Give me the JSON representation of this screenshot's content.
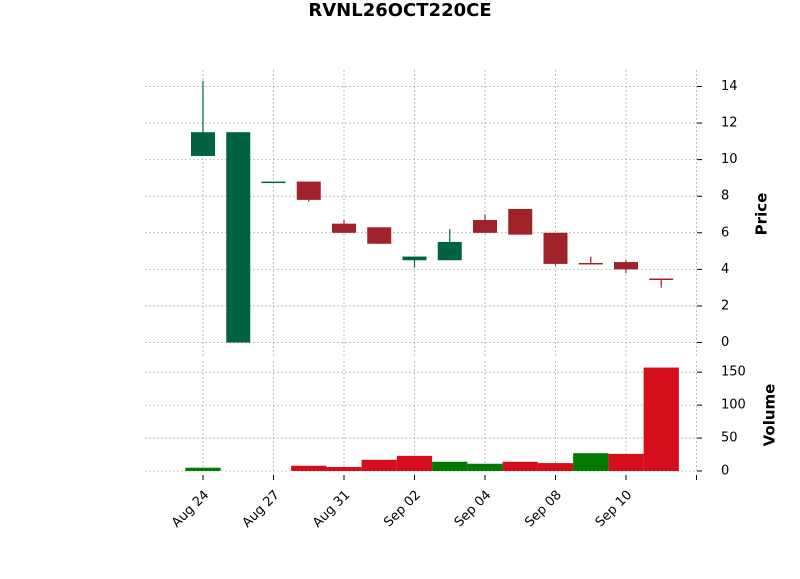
{
  "chart_data": {
    "type": "candlestick",
    "title": "RVNL26OCT220CE",
    "categories": [
      "Aug 24",
      null,
      "Aug 27",
      null,
      "Aug 31",
      null,
      "Sep 02",
      null,
      "Sep 04",
      null,
      "Sep 08",
      null,
      "Sep 10",
      null,
      null
    ],
    "open": [
      10.2,
      0,
      8.8,
      8.8,
      6.5,
      6.3,
      4.5,
      4.5,
      6.7,
      7.3,
      6.0,
      4.35,
      4.4,
      3.5,
      null
    ],
    "high": [
      14.3,
      11.5,
      8.8,
      8.8,
      6.7,
      6.3,
      4.7,
      6.2,
      7.0,
      7.3,
      6.0,
      4.7,
      4.5,
      3.5,
      null
    ],
    "low": [
      10.2,
      0,
      8.8,
      7.7,
      6.0,
      5.4,
      4.1,
      4.5,
      6.0,
      5.9,
      4.2,
      4.3,
      3.8,
      3.0,
      null
    ],
    "close": [
      11.5,
      11.5,
      8.8,
      7.8,
      6.0,
      5.4,
      4.7,
      5.5,
      6.0,
      5.9,
      4.3,
      4.3,
      4.0,
      3.45,
      null
    ],
    "up_color": "#006340",
    "down_color": "#a02128",
    "ylabel": "Price",
    "ylim": [
      -0.9,
      14.9
    ],
    "yticks": [
      0,
      2,
      4,
      6,
      8,
      10,
      12,
      14
    ],
    "volume": [
      5,
      0,
      0,
      8,
      6,
      17,
      23,
      14,
      11,
      14,
      12,
      27,
      26,
      157,
      null
    ],
    "volume_colors": [
      "#007a00",
      "#007a00",
      "#d50f1a",
      "#d50f1a",
      "#d50f1a",
      "#d50f1a",
      "#d50f1a",
      "#007a00",
      "#007a00",
      "#d50f1a",
      "#d50f1a",
      "#007a00",
      "#d50f1a",
      "#d50f1a",
      "#d50f1a"
    ],
    "y2label": "Volume",
    "y2lim": [
      0,
      170
    ],
    "y2ticks": [
      0,
      50,
      100,
      150
    ],
    "grid": true
  }
}
